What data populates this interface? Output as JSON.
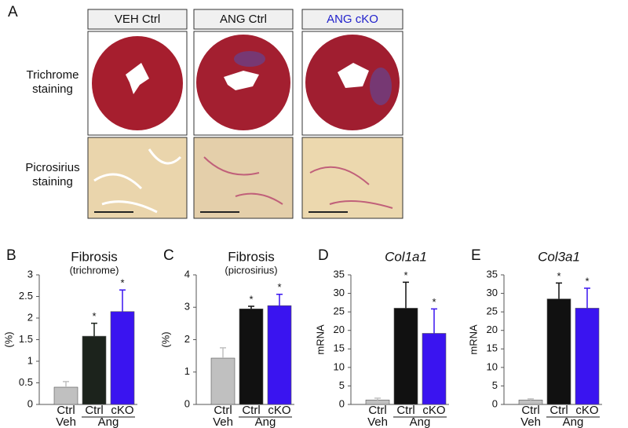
{
  "figure": {
    "panel_a": {
      "letter": "A",
      "columns": [
        "VEH Ctrl",
        "ANG Ctrl",
        "ANG cKO"
      ],
      "rows": [
        [
          "Trichrome",
          "staining"
        ],
        [
          "Picrosirius",
          "staining"
        ]
      ]
    },
    "chart_data": [
      {
        "type": "bar",
        "panel": "B",
        "title": "Fibrosis",
        "subtitle": "(trichrome)",
        "ylabel": "(%)",
        "categories": [
          "Ctrl",
          "Ctrl",
          "cKO"
        ],
        "groups": [
          "Veh",
          "Ang"
        ],
        "values": [
          0.4,
          1.58,
          2.15
        ],
        "error": [
          0.13,
          0.3,
          0.5
        ],
        "significance": [
          null,
          "*",
          "*"
        ],
        "colors": [
          "#c0c0c0",
          "#1c231c",
          "#3a14f0"
        ],
        "ylim": [
          0,
          3
        ],
        "yticks": [
          0,
          0.5,
          1,
          1.5,
          2,
          2.5,
          3
        ]
      },
      {
        "type": "bar",
        "panel": "C",
        "title": "Fibrosis",
        "subtitle": "(picrosirius)",
        "ylabel": "(%)",
        "categories": [
          "Ctrl",
          "Ctrl",
          "cKO"
        ],
        "groups": [
          "Veh",
          "Ang"
        ],
        "values": [
          1.43,
          2.95,
          3.05
        ],
        "error": [
          0.32,
          0.08,
          0.35
        ],
        "significance": [
          null,
          "*",
          "*"
        ],
        "colors": [
          "#c0c0c0",
          "#111111",
          "#3a14f0"
        ],
        "ylim": [
          0,
          4
        ],
        "yticks": [
          0,
          1,
          2,
          3,
          4
        ]
      },
      {
        "type": "bar",
        "panel": "D",
        "title": "Col1a1",
        "title_italic": true,
        "ylabel": "mRNA",
        "categories": [
          "Ctrl",
          "Ctrl",
          "cKO"
        ],
        "groups": [
          "Veh",
          "Ang"
        ],
        "values": [
          1.2,
          26,
          19.2
        ],
        "error": [
          0.5,
          7,
          6.6
        ],
        "significance": [
          null,
          "*",
          "*"
        ],
        "colors": [
          "#c0c0c0",
          "#111111",
          "#3a14f0"
        ],
        "ylim": [
          0,
          35
        ],
        "yticks": [
          0,
          5,
          10,
          15,
          20,
          25,
          30,
          35
        ]
      },
      {
        "type": "bar",
        "panel": "E",
        "title": "Col3a1",
        "title_italic": true,
        "ylabel": "mRNA",
        "categories": [
          "Ctrl",
          "Ctrl",
          "cKO"
        ],
        "groups": [
          "Veh",
          "Ang"
        ],
        "values": [
          1.2,
          28.5,
          26
        ],
        "error": [
          0.3,
          4.3,
          5.4
        ],
        "significance": [
          null,
          "*",
          "*"
        ],
        "colors": [
          "#c0c0c0",
          "#111111",
          "#3a14f0"
        ],
        "ylim": [
          0,
          35
        ],
        "yticks": [
          0,
          5,
          10,
          15,
          20,
          25,
          30,
          35
        ]
      }
    ]
  }
}
